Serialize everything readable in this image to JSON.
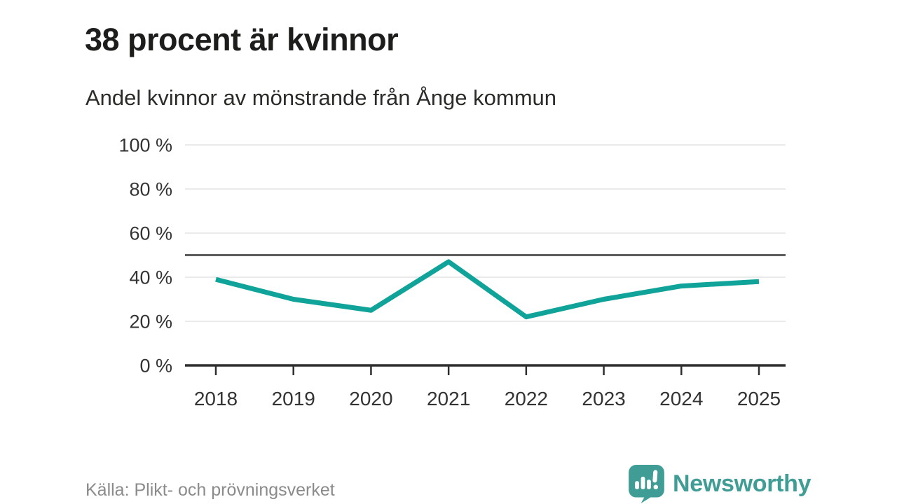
{
  "chart_data": {
    "type": "line",
    "title": "38 procent är kvinnor",
    "subtitle": "Andel kvinnor av mönstrande från Ånge kommun",
    "x": [
      "2018",
      "2019",
      "2020",
      "2021",
      "2022",
      "2023",
      "2024",
      "2025"
    ],
    "series": [
      {
        "name": "Andel kvinnor av mönstrande",
        "color": "#10a39a",
        "values": [
          39,
          30,
          25,
          47,
          22,
          30,
          36,
          38
        ]
      }
    ],
    "xlabel": "",
    "ylabel": "",
    "ylim": [
      0,
      100
    ],
    "yticks": [
      0,
      20,
      40,
      60,
      80,
      100
    ],
    "ytick_suffix": " %",
    "reference_line": {
      "value": 50,
      "color": "#5c5c5c"
    },
    "grid": true,
    "grid_color": "#e4e4e4",
    "axis_color": "#2e2e2e",
    "tick_label_color": "#333333",
    "legend_position": "none",
    "source_label": "Källa: Plikt- och prövningsverket"
  },
  "footer": {
    "brand": {
      "name": "Newsworthy",
      "color": "#3f9d96"
    }
  }
}
